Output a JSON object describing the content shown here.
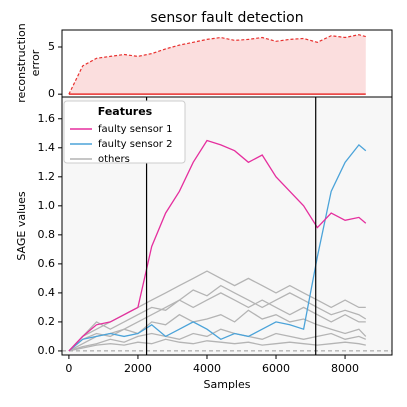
{
  "chart_data": [
    {
      "type": "area",
      "title": "sensor fault detection",
      "ylabel": [
        "reconstruction",
        "error"
      ],
      "x": [
        0,
        400,
        800,
        1200,
        1600,
        2000,
        2400,
        2800,
        3200,
        3600,
        4000,
        4400,
        4800,
        5200,
        5600,
        6000,
        6400,
        6800,
        7200,
        7600,
        8000,
        8400,
        8600
      ],
      "values": [
        0,
        3,
        3.8,
        4,
        4.2,
        4,
        4.3,
        4.8,
        5.2,
        5.5,
        5.8,
        6,
        5.7,
        5.8,
        6,
        5.6,
        5.8,
        5.9,
        5.5,
        6.2,
        6,
        6.3,
        6.1
      ],
      "color": "#e8312f",
      "fill": "#fbdede",
      "hline": 0,
      "xlim": [
        -200,
        9360
      ],
      "ylim": [
        -0.3,
        6.8
      ],
      "yticks": [
        0,
        5
      ]
    },
    {
      "type": "line",
      "xlabel": "Samples",
      "ylabel": "SAGE values",
      "legend_title": "Features",
      "x": [
        0,
        400,
        800,
        1200,
        1600,
        2000,
        2400,
        2800,
        3200,
        3600,
        4000,
        4400,
        4800,
        5200,
        5600,
        6000,
        6400,
        6800,
        7200,
        7600,
        8000,
        8400,
        8600
      ],
      "series": [
        {
          "name": "faulty sensor 1",
          "color": "#e52f9e",
          "values": [
            0.0,
            0.1,
            0.18,
            0.2,
            0.25,
            0.3,
            0.72,
            0.95,
            1.1,
            1.3,
            1.45,
            1.42,
            1.38,
            1.3,
            1.35,
            1.2,
            1.1,
            1.0,
            0.85,
            0.95,
            0.9,
            0.92,
            0.88
          ]
        },
        {
          "name": "faulty sensor 2",
          "color": "#4ba3d9",
          "values": [
            0.0,
            0.08,
            0.1,
            0.12,
            0.1,
            0.12,
            0.18,
            0.1,
            0.15,
            0.2,
            0.15,
            0.08,
            0.12,
            0.1,
            0.15,
            0.2,
            0.18,
            0.15,
            0.65,
            1.1,
            1.3,
            1.42,
            1.38
          ]
        },
        {
          "name": "others",
          "color": "#b4b4b4",
          "lines": [
            [
              0,
              0.1,
              0.15,
              0.2,
              0.25,
              0.3,
              0.35,
              0.4,
              0.45,
              0.5,
              0.55,
              0.5,
              0.45,
              0.5,
              0.45,
              0.4,
              0.45,
              0.4,
              0.35,
              0.3,
              0.35,
              0.3,
              0.3
            ],
            [
              0,
              0.05,
              0.1,
              0.12,
              0.15,
              0.2,
              0.25,
              0.3,
              0.35,
              0.3,
              0.35,
              0.4,
              0.35,
              0.3,
              0.35,
              0.3,
              0.25,
              0.3,
              0.25,
              0.2,
              0.25,
              0.2,
              0.2
            ],
            [
              0,
              0.08,
              0.12,
              0.1,
              0.15,
              0.12,
              0.2,
              0.18,
              0.25,
              0.2,
              0.22,
              0.25,
              0.2,
              0.28,
              0.22,
              0.25,
              0.2,
              0.22,
              0.18,
              0.15,
              0.12,
              0.15,
              0.1
            ],
            [
              0,
              0.03,
              0.05,
              0.08,
              0.06,
              0.1,
              0.12,
              0.1,
              0.08,
              0.12,
              0.1,
              0.15,
              0.12,
              0.1,
              0.08,
              0.12,
              0.1,
              0.08,
              0.1,
              0.12,
              0.08,
              0.1,
              0.08
            ],
            [
              0,
              0.1,
              0.2,
              0.15,
              0.2,
              0.25,
              0.3,
              0.28,
              0.35,
              0.42,
              0.38,
              0.45,
              0.4,
              0.35,
              0.3,
              0.35,
              0.4,
              0.35,
              0.3,
              0.25,
              0.28,
              0.25,
              0.22
            ],
            [
              0,
              0.02,
              0.04,
              0.05,
              0.04,
              0.06,
              0.05,
              0.08,
              0.06,
              0.05,
              0.07,
              0.06,
              0.05,
              0.06,
              0.04,
              0.05,
              0.06,
              0.05,
              0.04,
              0.05,
              0.06,
              0.05,
              0.04
            ]
          ]
        }
      ],
      "vlines": [
        2250,
        7150
      ],
      "hline": 0,
      "xlim": [
        -200,
        9360
      ],
      "ylim": [
        -0.028,
        1.75
      ],
      "xticks": [
        0,
        2000,
        4000,
        6000,
        8000
      ],
      "yticks": [
        {
          "value": 0,
          "label": "0.0"
        },
        0.2,
        0.4,
        0.6,
        0.8,
        {
          "value": 1,
          "label": "1.0"
        },
        1.2,
        1.4,
        1.6
      ]
    }
  ]
}
